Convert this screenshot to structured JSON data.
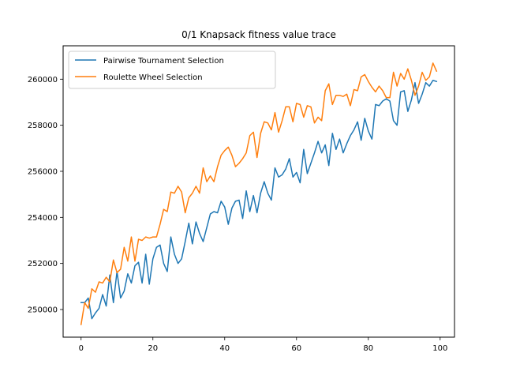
{
  "chart_data": {
    "type": "line",
    "title": "0/1 Knapsack fitness value trace",
    "xlabel": "",
    "ylabel": "",
    "xlim": [
      -5,
      104
    ],
    "ylim": [
      248800,
      261450
    ],
    "xticks": [
      0,
      20,
      40,
      60,
      80,
      100
    ],
    "yticks": [
      250000,
      252000,
      254000,
      256000,
      258000,
      260000
    ],
    "grid": false,
    "legend_position": "top-left",
    "series": [
      {
        "name": "Pairwise Tournament Selection",
        "color": "#1f77b4",
        "x": [
          0,
          1,
          2,
          3,
          4,
          5,
          6,
          7,
          8,
          9,
          10,
          11,
          12,
          13,
          14,
          15,
          16,
          17,
          18,
          19,
          20,
          21,
          22,
          23,
          24,
          25,
          26,
          27,
          28,
          29,
          30,
          31,
          32,
          33,
          34,
          35,
          36,
          37,
          38,
          39,
          40,
          41,
          42,
          43,
          44,
          45,
          46,
          47,
          48,
          49,
          50,
          51,
          52,
          53,
          54,
          55,
          56,
          57,
          58,
          59,
          60,
          61,
          62,
          63,
          64,
          65,
          66,
          67,
          68,
          69,
          70,
          71,
          72,
          73,
          74,
          75,
          76,
          77,
          78,
          79,
          80,
          81,
          82,
          83,
          84,
          85,
          86,
          87,
          88,
          89,
          90,
          91,
          92,
          93,
          94,
          95,
          96,
          97,
          98,
          99
        ],
        "values": [
          250300,
          250300,
          250500,
          249600,
          249850,
          250050,
          250650,
          250150,
          251500,
          250300,
          251650,
          250500,
          250800,
          251550,
          251150,
          251900,
          252050,
          251150,
          252400,
          251100,
          252200,
          252700,
          252800,
          252000,
          251650,
          253150,
          252400,
          252000,
          252200,
          252950,
          253750,
          252850,
          253800,
          253300,
          252950,
          253550,
          254150,
          254250,
          254200,
          254700,
          254450,
          253700,
          254400,
          254700,
          254750,
          253950,
          255150,
          254250,
          254950,
          254200,
          255050,
          255550,
          255050,
          254750,
          256150,
          255750,
          255850,
          256100,
          256550,
          255750,
          255950,
          255500,
          256950,
          255900,
          256350,
          256800,
          257300,
          256800,
          257150,
          256250,
          257650,
          256950,
          257400,
          256800,
          257200,
          257550,
          257800,
          258150,
          257350,
          258300,
          257750,
          257400,
          258900,
          258850,
          259050,
          259150,
          259050,
          258200,
          258000,
          259450,
          259500,
          258600,
          259100,
          259850,
          258950,
          259350,
          259850,
          259700,
          259950,
          259900
        ]
      },
      {
        "name": "Roulette Wheel Selection",
        "color": "#ff7f0e",
        "x": [
          0,
          1,
          2,
          3,
          4,
          5,
          6,
          7,
          8,
          9,
          10,
          11,
          12,
          13,
          14,
          15,
          16,
          17,
          18,
          19,
          20,
          21,
          22,
          23,
          24,
          25,
          26,
          27,
          28,
          29,
          30,
          31,
          32,
          33,
          34,
          35,
          36,
          37,
          38,
          39,
          40,
          41,
          42,
          43,
          44,
          45,
          46,
          47,
          48,
          49,
          50,
          51,
          52,
          53,
          54,
          55,
          56,
          57,
          58,
          59,
          60,
          61,
          62,
          63,
          64,
          65,
          66,
          67,
          68,
          69,
          70,
          71,
          72,
          73,
          74,
          75,
          76,
          77,
          78,
          79,
          80,
          81,
          82,
          83,
          84,
          85,
          86,
          87,
          88,
          89,
          90,
          91,
          92,
          93,
          94,
          95,
          96,
          97,
          98,
          99
        ],
        "values": [
          249350,
          250300,
          250050,
          250900,
          250750,
          251200,
          251150,
          251400,
          251200,
          252150,
          251600,
          251750,
          252700,
          252100,
          253150,
          252100,
          253050,
          253000,
          253150,
          253100,
          253150,
          253150,
          253700,
          254350,
          254250,
          255100,
          255050,
          255350,
          255100,
          254200,
          254850,
          255050,
          255350,
          255050,
          256150,
          255550,
          255800,
          255550,
          256200,
          256700,
          256900,
          257050,
          256700,
          256200,
          256350,
          256550,
          256800,
          257550,
          257700,
          256600,
          257650,
          258150,
          258100,
          257800,
          258550,
          257700,
          258200,
          258800,
          258800,
          258150,
          258950,
          258900,
          258350,
          258850,
          258800,
          258100,
          258350,
          258200,
          259500,
          259800,
          258900,
          259300,
          259300,
          259250,
          259350,
          258850,
          259550,
          259500,
          260100,
          260200,
          259900,
          259650,
          259450,
          259700,
          259500,
          259200,
          259200,
          260300,
          259700,
          260250,
          260000,
          260450,
          259950,
          259300,
          259700,
          260300,
          259950,
          260100,
          260700,
          260350
        ]
      }
    ]
  }
}
